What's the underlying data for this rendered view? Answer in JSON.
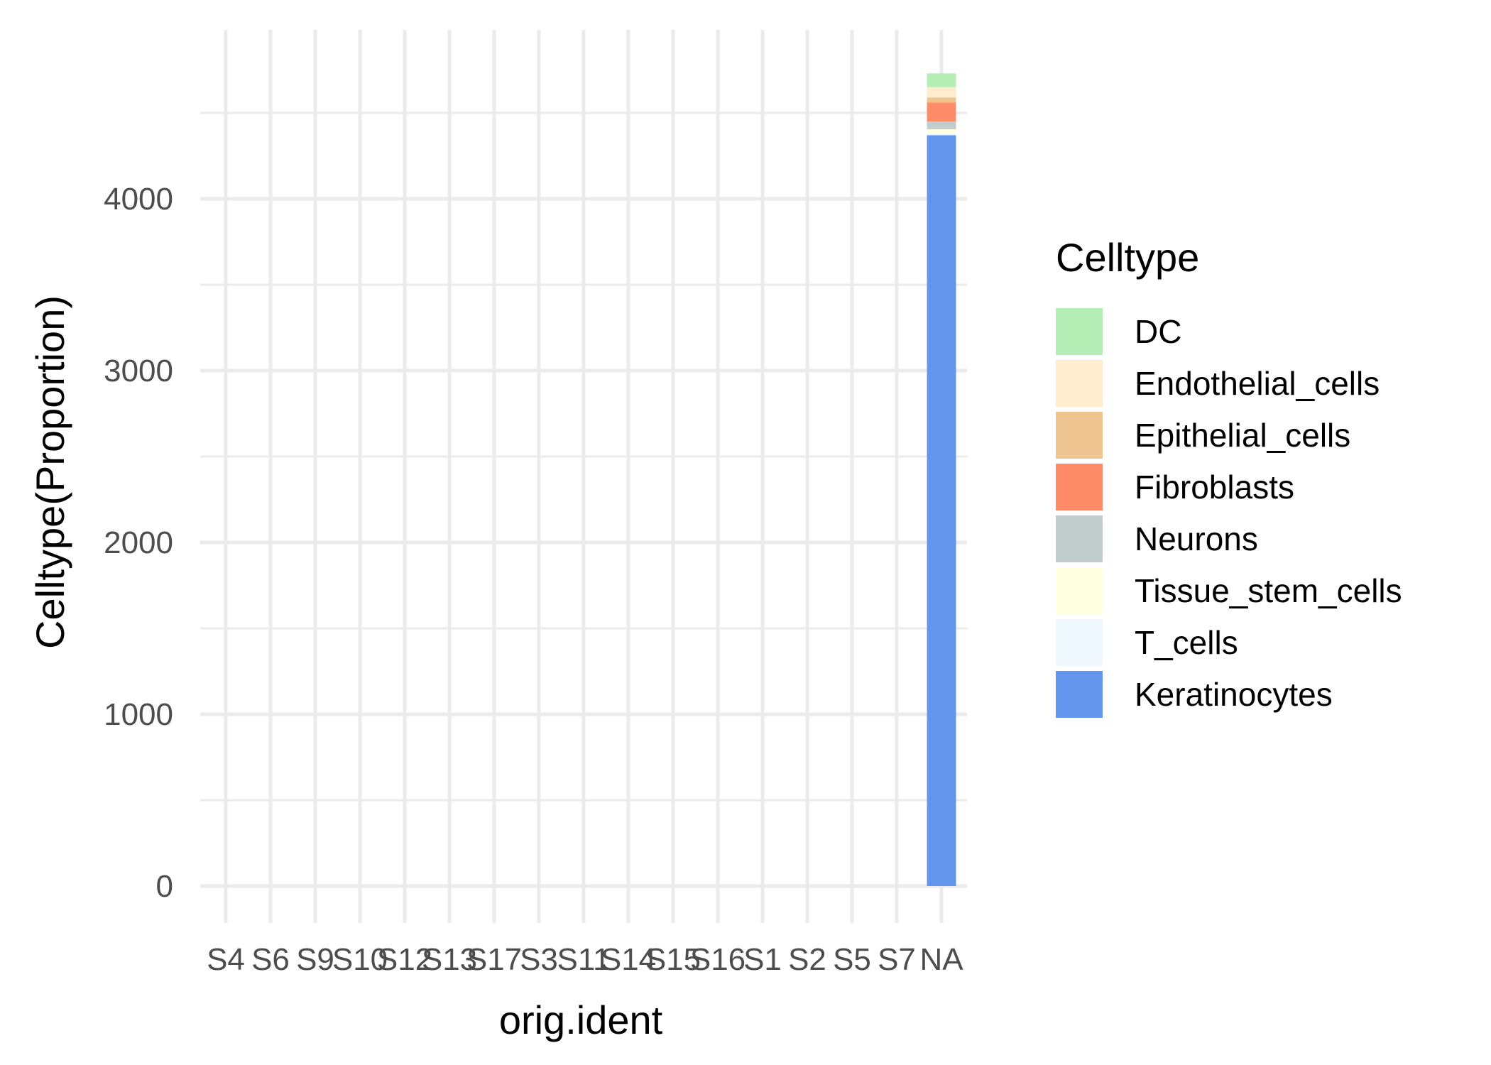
{
  "chart_data": {
    "type": "bar",
    "stacked": true,
    "title": "",
    "xlabel": "orig.ident",
    "ylabel": "Celltype(Proportion)",
    "categories": [
      "S4",
      "S6",
      "S9",
      "S10",
      "S12",
      "S13",
      "S17",
      "S3",
      "S11",
      "S14",
      "S15",
      "S16",
      "S1",
      "S2",
      "S5",
      "S7",
      "NA"
    ],
    "ylim": [
      -230,
      4830
    ],
    "y_ticks": [
      0,
      1000,
      2000,
      3000,
      4000
    ],
    "grid": true,
    "legend": {
      "title": "Celltype",
      "position": "right"
    },
    "series": [
      {
        "name": "Keratinocytes",
        "color": "#6495ED",
        "values": [
          0,
          0,
          0,
          0,
          0,
          0,
          0,
          0,
          0,
          0,
          0,
          0,
          0,
          0,
          0,
          0,
          4370
        ]
      },
      {
        "name": "T_cells",
        "color": "#F0F8FF",
        "values": [
          0,
          0,
          0,
          0,
          0,
          0,
          0,
          0,
          0,
          0,
          0,
          0,
          0,
          0,
          0,
          0,
          10
        ]
      },
      {
        "name": "Tissue_stem_cells",
        "color": "#FFFFE0",
        "values": [
          0,
          0,
          0,
          0,
          0,
          0,
          0,
          0,
          0,
          0,
          0,
          0,
          0,
          0,
          0,
          0,
          25
        ]
      },
      {
        "name": "Neurons",
        "color": "#C1CDCD",
        "values": [
          0,
          0,
          0,
          0,
          0,
          0,
          0,
          0,
          0,
          0,
          0,
          0,
          0,
          0,
          0,
          0,
          45
        ]
      },
      {
        "name": "Fibroblasts",
        "color": "#FF8C69",
        "values": [
          0,
          0,
          0,
          0,
          0,
          0,
          0,
          0,
          0,
          0,
          0,
          0,
          0,
          0,
          0,
          0,
          110
        ]
      },
      {
        "name": "Epithelial_cells",
        "color": "#EEC591",
        "values": [
          0,
          0,
          0,
          0,
          0,
          0,
          0,
          0,
          0,
          0,
          0,
          0,
          0,
          0,
          0,
          0,
          30
        ]
      },
      {
        "name": "Endothelial_cells",
        "color": "#FFEBCD",
        "values": [
          0,
          0,
          0,
          0,
          0,
          0,
          0,
          0,
          0,
          0,
          0,
          0,
          0,
          0,
          0,
          0,
          60
        ]
      },
      {
        "name": "DC",
        "color": "#B4EEB4",
        "values": [
          0,
          0,
          0,
          0,
          0,
          0,
          0,
          0,
          0,
          0,
          0,
          0,
          0,
          0,
          0,
          0,
          80
        ]
      }
    ],
    "legend_order": [
      "DC",
      "Endothelial_cells",
      "Epithelial_cells",
      "Fibroblasts",
      "Neurons",
      "Tissue_stem_cells",
      "T_cells",
      "Keratinocytes"
    ]
  }
}
